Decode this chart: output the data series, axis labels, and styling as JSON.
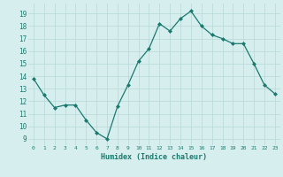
{
  "x": [
    0,
    1,
    2,
    3,
    4,
    5,
    6,
    7,
    8,
    9,
    10,
    11,
    12,
    13,
    14,
    15,
    16,
    17,
    18,
    19,
    20,
    21,
    22,
    23
  ],
  "y": [
    13.8,
    12.5,
    11.5,
    11.7,
    11.7,
    10.5,
    9.5,
    9.0,
    11.6,
    13.3,
    15.2,
    16.2,
    18.2,
    17.6,
    18.6,
    19.2,
    18.0,
    17.3,
    17.0,
    16.6,
    16.6,
    15.0,
    13.3,
    12.6
  ],
  "xlabel": "Humidex (Indice chaleur)",
  "ylim": [
    8.5,
    19.8
  ],
  "yticks": [
    9,
    10,
    11,
    12,
    13,
    14,
    15,
    16,
    17,
    18,
    19
  ],
  "xticks": [
    0,
    1,
    2,
    3,
    4,
    5,
    6,
    7,
    8,
    9,
    10,
    11,
    12,
    13,
    14,
    15,
    16,
    17,
    18,
    19,
    20,
    21,
    22,
    23
  ],
  "line_color": "#1a7a6e",
  "marker_color": "#1a7a6e",
  "bg_color": "#d6eeee",
  "grid_color": "#b8d8d8",
  "tick_color": "#1a7a6e",
  "label_color": "#1a7a6e"
}
